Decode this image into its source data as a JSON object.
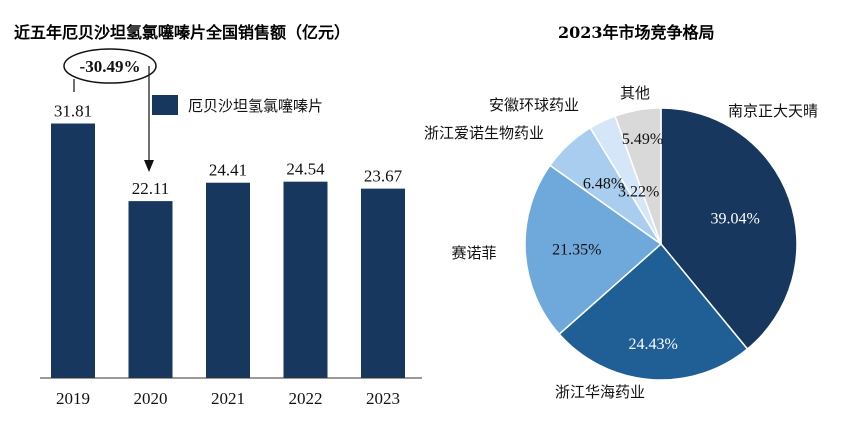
{
  "chart_data": [
    {
      "type": "bar",
      "title": "近五年厄贝沙坦氢氯噻嗪片全国销售额（亿元）",
      "categories": [
        "2019",
        "2020",
        "2021",
        "2022",
        "2023"
      ],
      "series": [
        {
          "name": "厄贝沙坦氢氯噻嗪片",
          "values": [
            31.81,
            22.11,
            24.41,
            24.54,
            23.67
          ],
          "color": "#17375e"
        }
      ],
      "value_labels": [
        "31.81",
        "22.11",
        "24.41",
        "24.54",
        "23.67"
      ],
      "ylim": [
        0,
        40
      ],
      "annotation": {
        "text": "-30.49%",
        "from": "2019",
        "to": "2020"
      },
      "legend_position": "top-right",
      "xlabel": "",
      "ylabel": ""
    },
    {
      "type": "pie",
      "title": "2023年市场竞争格局",
      "slices": [
        {
          "name": "南京正大天晴",
          "value": 39.04,
          "label": "39.04%",
          "color": "#17375e",
          "text_color": "#ffffff"
        },
        {
          "name": "浙江华海药业",
          "value": 24.43,
          "label": "24.43%",
          "color": "#1f5f96",
          "text_color": "#ffffff"
        },
        {
          "name": "赛诺菲",
          "value": 21.35,
          "label": "21.35%",
          "color": "#6fa9dc",
          "text_color": "#111111"
        },
        {
          "name": "浙江爱诺生物药业",
          "value": 6.48,
          "label": "6.48%",
          "color": "#a9cdee",
          "text_color": "#111111"
        },
        {
          "name": "安徽环球药业",
          "value": 3.22,
          "label": "3.22%",
          "color": "#d4e6f7",
          "text_color": "#111111"
        },
        {
          "name": "其他",
          "value": 5.49,
          "label": "5.49%",
          "color": "#d9d9d9",
          "text_color": "#111111"
        }
      ],
      "start_angle_deg": 0,
      "direction": "clockwise"
    }
  ]
}
